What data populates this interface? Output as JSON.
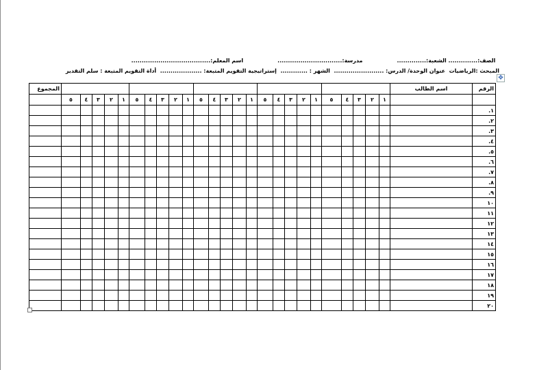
{
  "header": {
    "line1": [
      "الصف:.............. الشعبة:..............",
      "مدرسة:...............................",
      "اسم المعلم:......................................"
    ],
    "line2": "المبحث :الرياضيات  عنوان الوحدة/ الدرس: ........................  الشهر : .............  إستراتيجية التقويم المتبعة: ....................  أداة التقويم المتبعة : سلم التقدير"
  },
  "table": {
    "col_number": "الرقم",
    "col_name": "اسم الطالب",
    "col_total": "المجموع",
    "sub_numbers": [
      "١",
      "٢",
      "٣",
      "٤",
      "٥"
    ],
    "group_count": 5,
    "rows": [
      "١.",
      "٢.",
      "٣.",
      "٤.",
      "٥.",
      "٦.",
      "٧.",
      "٨.",
      "٩.",
      "١٠",
      "١١",
      "١٢",
      "١٣",
      "١٤",
      "١٥",
      "١٦",
      "١٧",
      "١٨",
      "١٩",
      "٢٠"
    ]
  }
}
